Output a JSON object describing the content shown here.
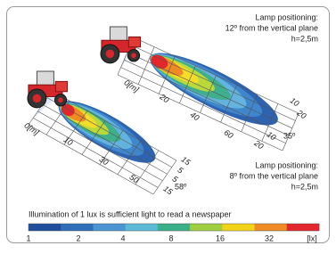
{
  "panels": [
    {
      "caption": [
        "Lamp positioning:",
        "12º from the vertical plane",
        "h=2,5m"
      ],
      "angle": "35º",
      "distance_labels": [
        "0[m]",
        "20",
        "40",
        "60"
      ],
      "lateral_labels": [
        "10",
        "20",
        "10",
        "20"
      ]
    },
    {
      "caption": [
        "Lamp positioning:",
        "8º from the vertical plane",
        "h=2,5m"
      ],
      "angle": "58º",
      "distance_labels": [
        "0[m]",
        "10",
        "30",
        "50"
      ],
      "lateral_labels": [
        "15",
        "5",
        "5",
        "15"
      ]
    }
  ],
  "note": "Illumination of 1 lux is sufficient light to read a newspaper",
  "scale": {
    "labels": [
      "1",
      "2",
      "4",
      "8",
      "16",
      "32"
    ],
    "unit": "[lx]"
  }
}
